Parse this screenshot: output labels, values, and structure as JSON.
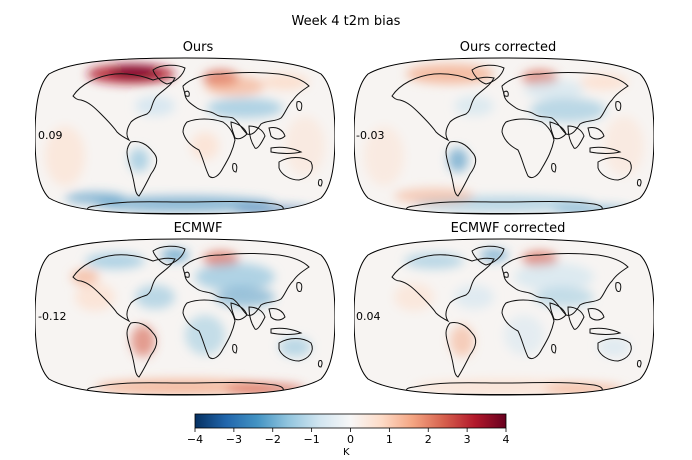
{
  "figure": {
    "title": "Week 4 t2m bias"
  },
  "panels": [
    {
      "title": "Ours",
      "mean_bias": "0.09",
      "pattern": "ours"
    },
    {
      "title": "Ours corrected",
      "mean_bias": "-0.03",
      "pattern": "ours_corrected"
    },
    {
      "title": "ECMWF",
      "mean_bias": "-0.12",
      "pattern": "ecmwf"
    },
    {
      "title": "ECMWF corrected",
      "mean_bias": "0.04",
      "pattern": "ecmwf_corrected"
    }
  ],
  "colorbar": {
    "label": "K",
    "ticks": [
      "-4",
      "-3",
      "-2",
      "-1",
      "0",
      "1",
      "2",
      "3",
      "4"
    ],
    "range": [
      -4,
      4
    ],
    "colors": [
      "#053061",
      "#2166ac",
      "#4393c3",
      "#92c5de",
      "#d1e5f0",
      "#f7f7f7",
      "#fddbc7",
      "#f4a582",
      "#d6604d",
      "#b2182b",
      "#67001f"
    ]
  }
}
